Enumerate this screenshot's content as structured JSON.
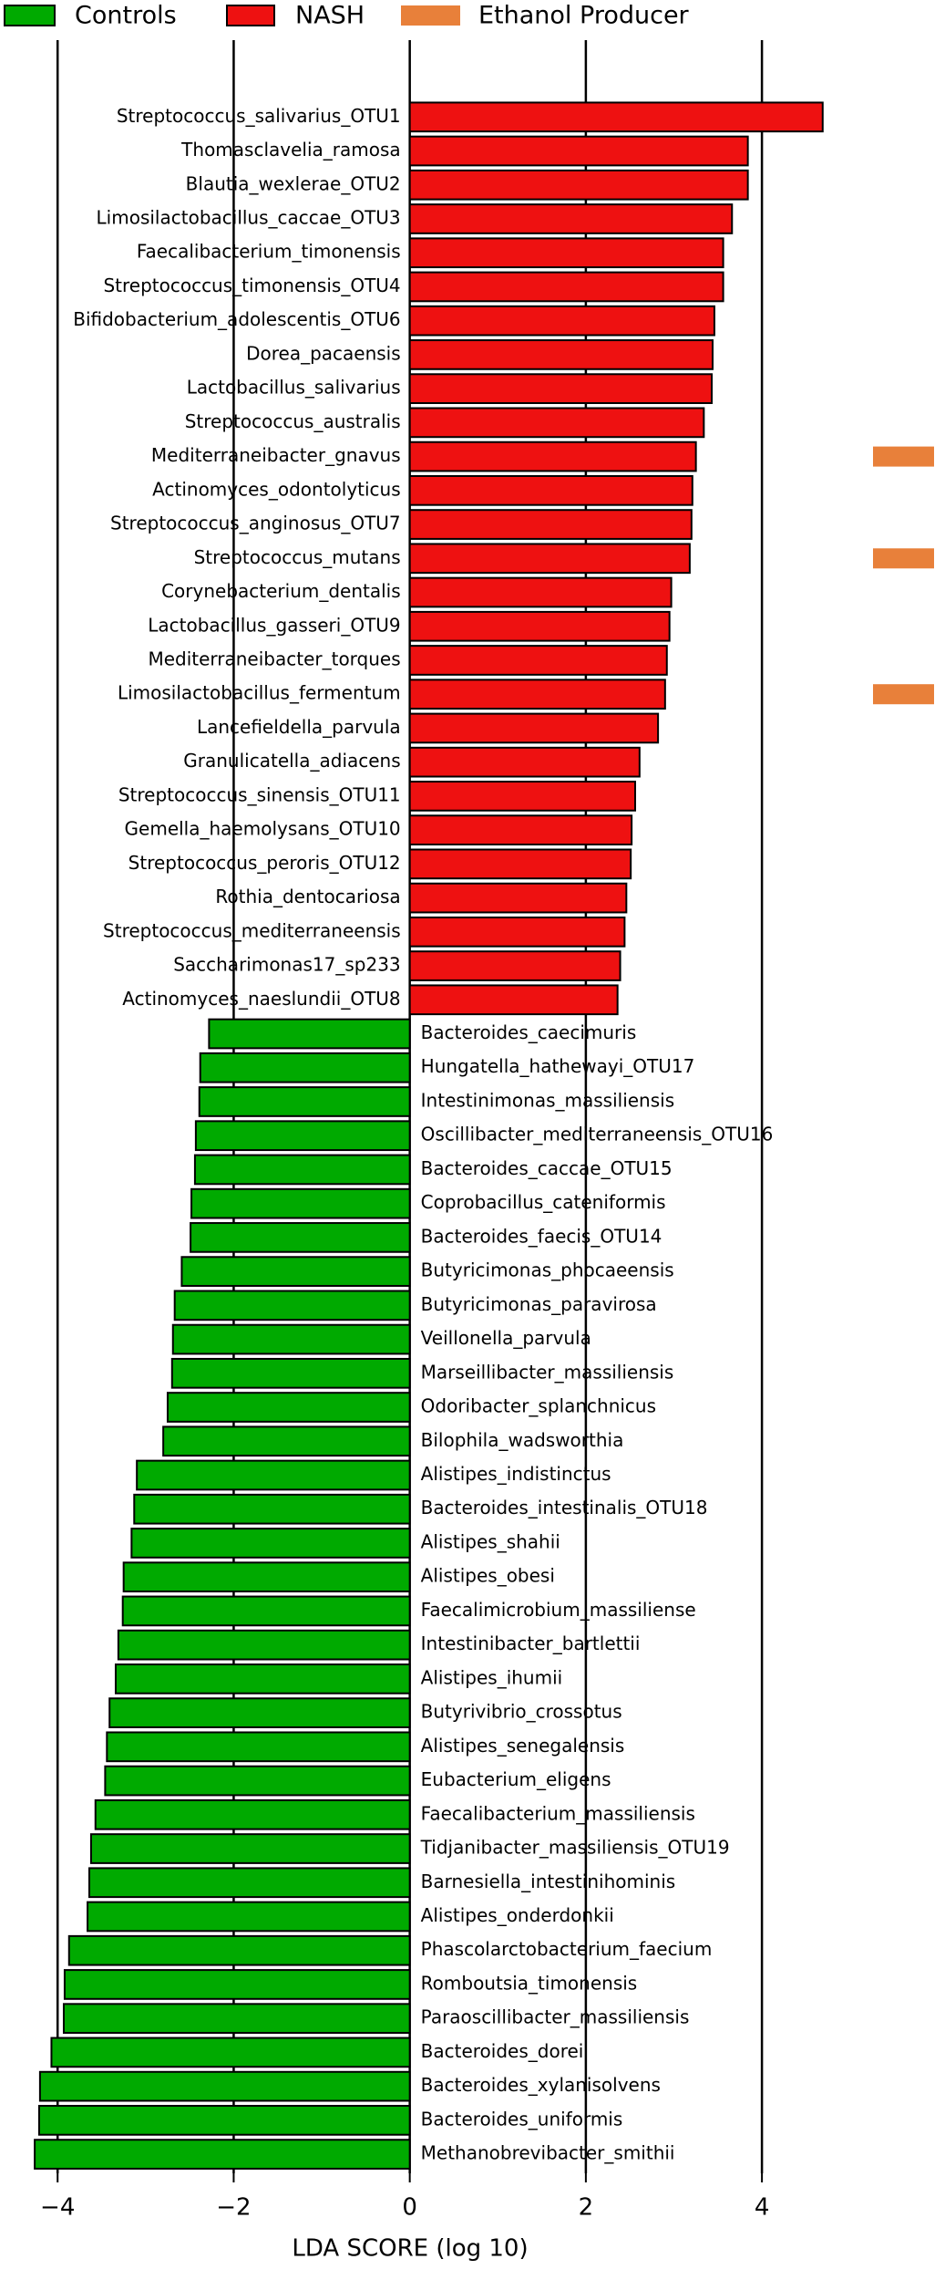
{
  "chart_data": {
    "type": "lefse-bar",
    "xlabel": "LDA SCORE (log 10)",
    "xlim": [
      -4.35,
      4.8
    ],
    "xticks": [
      {
        "value": -4,
        "label": "−4"
      },
      {
        "value": -2,
        "label": "−2"
      },
      0,
      2,
      4
    ],
    "grid": true,
    "legend": "top",
    "categories": [
      "Streptococcus_salivarius_OTU1",
      "Thomasclavelia_ramosa",
      "Blautia_wexlerae_OTU2",
      "Limosilactobacillus_caccae_OTU3",
      "Faecalibacterium_timonensis",
      "Streptococcus_timonensis_OTU4",
      "Bifidobacterium_adolescentis_OTU6",
      "Dorea_pacaensis",
      "Lactobacillus_salivarius",
      "Streptococcus_australis",
      "Mediterraneibacter_gnavus",
      "Actinomyces_odontolyticus",
      "Streptococcus_anginosus_OTU7",
      "Streptococcus_mutans",
      "Corynebacterium_dentalis",
      "Lactobacillus_gasseri_OTU9",
      "Mediterraneibacter_torques",
      "Limosilactobacillus_fermentum",
      "Lancefieldella_parvula",
      "Granulicatella_adiacens",
      "Streptococcus_sinensis_OTU11",
      "Gemella_haemolysans_OTU10",
      "Streptococcus_peroris_OTU12",
      "Rothia_dentocariosa",
      "Streptococcus_mediterraneensis",
      "Saccharimonas17_sp233",
      "Actinomyces_naeslundii_OTU8",
      "Bacteroides_caecimuris",
      "Hungatella_hathewayi_OTU17",
      "Intestinimonas_massiliensis",
      "Oscillibacter_mediterraneensis_OTU16",
      "Bacteroides_caccae_OTU15",
      "Coprobacillus_cateniformis",
      "Bacteroides_faecis_OTU14",
      "Butyricimonas_phocaeensis",
      "Butyricimonas_paravirosa",
      "Veillonella_parvula",
      "Marseillibacter_massiliensis",
      "Odoribacter_splanchnicus",
      "Bilophila_wadsworthia",
      "Alistipes_indistinctus",
      "Bacteroides_intestinalis_OTU18",
      "Alistipes_shahii",
      "Alistipes_obesi",
      "Faecalimicrobium_massiliense",
      "Intestinibacter_bartlettii",
      "Alistipes_ihumii",
      "Butyrivibrio_crossotus",
      "Alistipes_senegalensis",
      "Eubacterium_eligens",
      "Faecalibacterium_massiliensis",
      "Tidjanibacter_massiliensis_OTU19",
      "Barnesiella_intestinihominis",
      "Alistipes_onderdonkii",
      "Phascolarctobacterium_faecium",
      "Romboutsia_timonensis",
      "Paraoscillibacter_massiliensis",
      "Bacteroides_dorei",
      "Bacteroides_xylanisolvens",
      "Bacteroides_uniformis",
      "Methanobrevibacter_smithii"
    ],
    "series": [
      {
        "name": "Controls",
        "color": "#00aa00",
        "values": [
          null,
          null,
          null,
          null,
          null,
          null,
          null,
          null,
          null,
          null,
          null,
          null,
          null,
          null,
          null,
          null,
          null,
          null,
          null,
          null,
          null,
          null,
          null,
          null,
          null,
          null,
          null,
          -2.28,
          -2.38,
          -2.39,
          -2.43,
          -2.44,
          -2.48,
          -2.49,
          -2.59,
          -2.67,
          -2.69,
          -2.7,
          -2.75,
          -2.8,
          -3.1,
          -3.13,
          -3.16,
          -3.25,
          -3.26,
          -3.31,
          -3.34,
          -3.41,
          -3.44,
          -3.46,
          -3.57,
          -3.62,
          -3.64,
          -3.66,
          -3.87,
          -3.92,
          -3.93,
          -4.07,
          -4.2,
          -4.21,
          -4.26
        ]
      },
      {
        "name": "NASH",
        "color": "#ee1111",
        "values": [
          4.69,
          3.84,
          3.84,
          3.66,
          3.56,
          3.56,
          3.46,
          3.44,
          3.43,
          3.34,
          3.25,
          3.21,
          3.2,
          3.18,
          2.97,
          2.95,
          2.92,
          2.9,
          2.82,
          2.61,
          2.56,
          2.52,
          2.51,
          2.46,
          2.44,
          2.39,
          2.36,
          null,
          null,
          null,
          null,
          null,
          null,
          null,
          null,
          null,
          null,
          null,
          null,
          null,
          null,
          null,
          null,
          null,
          null,
          null,
          null,
          null,
          null,
          null,
          null,
          null,
          null,
          null,
          null,
          null,
          null,
          null,
          null,
          null,
          null
        ]
      },
      {
        "name": "Ethanol Producer",
        "color": "#e8803a",
        "flags": [
          false,
          false,
          false,
          false,
          false,
          false,
          false,
          false,
          false,
          false,
          true,
          false,
          false,
          true,
          false,
          false,
          false,
          true,
          false,
          false,
          false,
          false,
          false,
          false,
          false,
          false,
          false,
          false,
          false,
          false,
          false,
          false,
          false,
          false,
          false,
          false,
          false,
          false,
          false,
          false,
          false,
          false,
          false,
          false,
          false,
          false,
          false,
          false,
          false,
          false,
          false,
          false,
          false,
          false,
          false,
          false,
          false,
          false,
          false,
          false,
          false
        ]
      }
    ]
  }
}
